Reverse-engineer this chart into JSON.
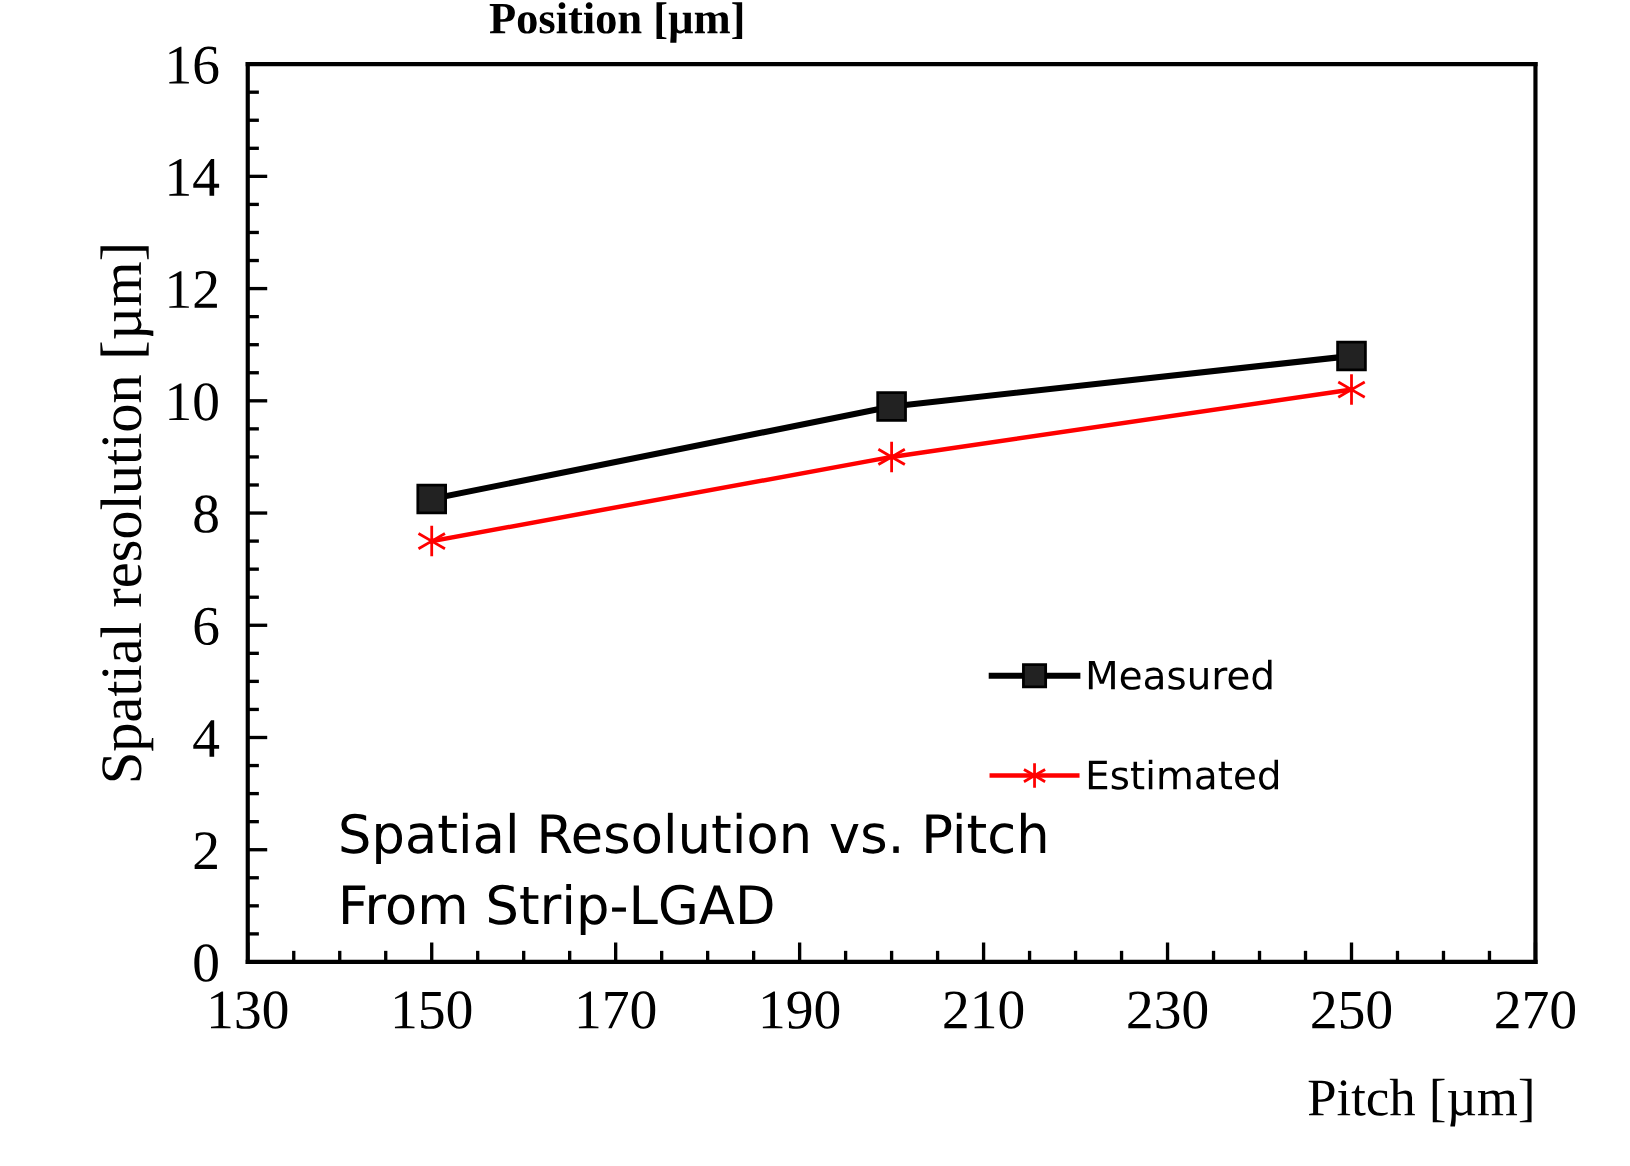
{
  "chart_data": {
    "type": "line",
    "title": "Position [µm]",
    "xlabel": "Pitch [µm]",
    "ylabel": "Spatial resolution [µm]",
    "x": [
      150,
      200,
      250
    ],
    "series": [
      {
        "name": "Measured",
        "color": "#000000",
        "marker": "square",
        "values": [
          8.25,
          9.9,
          10.8
        ]
      },
      {
        "name": "Estimated",
        "color": "#ff0000",
        "marker": "cross",
        "values": [
          7.5,
          9.0,
          10.2
        ]
      }
    ],
    "xlim": [
      130,
      270
    ],
    "xticks": [
      130,
      150,
      170,
      190,
      210,
      230,
      250,
      270
    ],
    "ylim": [
      0,
      16
    ],
    "yticks": [
      0,
      2,
      4,
      6,
      8,
      10,
      12,
      14,
      16
    ],
    "annotations": [
      "Spatial Resolution vs. Pitch\nFrom Strip-LGAD"
    ],
    "legend": "right",
    "grid": false,
    "line_style": "solid"
  }
}
